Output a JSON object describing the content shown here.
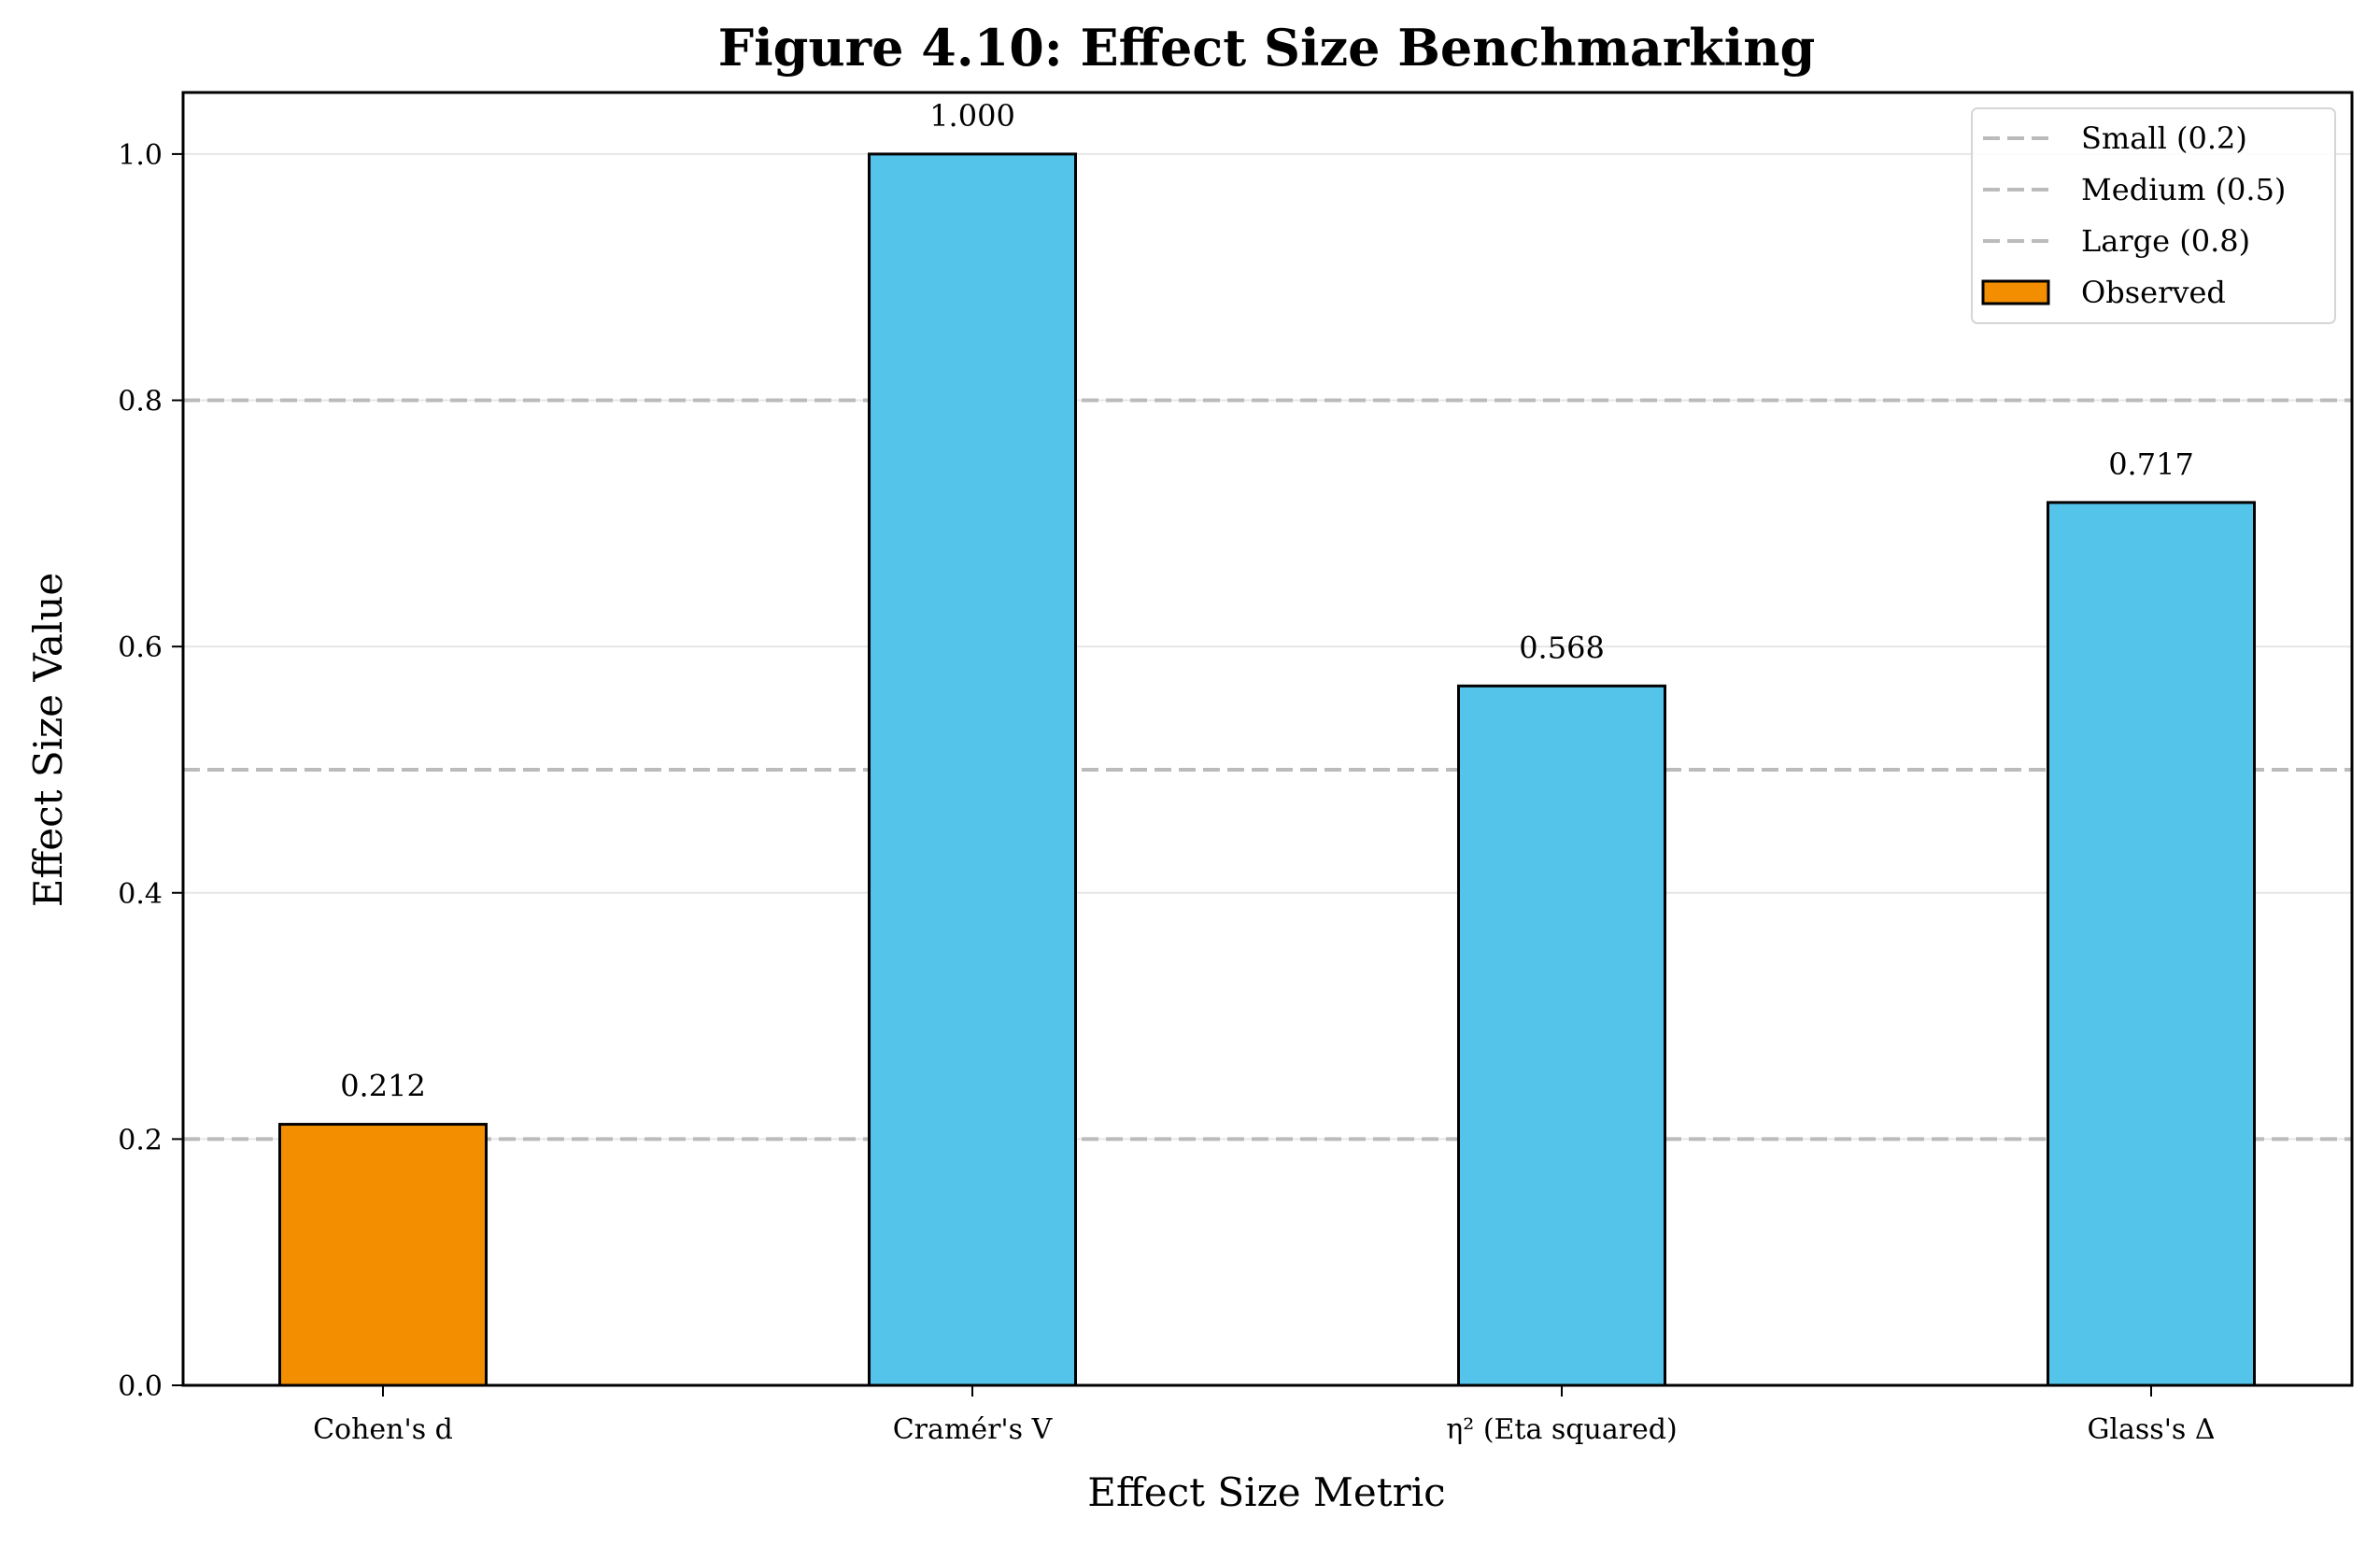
{
  "chart_data": {
    "type": "bar",
    "title": "Figure 4.10: Effect Size Benchmarking",
    "xlabel": "Effect Size Metric",
    "ylabel": "Effect Size Value",
    "categories": [
      "Cohen's d",
      "Cramér's V",
      "η² (Eta squared)",
      "Glass's Δ"
    ],
    "values": [
      0.212,
      1.0,
      0.568,
      0.717
    ],
    "value_labels": [
      "0.212",
      "1.000",
      "0.568",
      "0.717"
    ],
    "bar_colors": [
      "#F28E00",
      "#55C4EA",
      "#55C4EA",
      "#55C4EA"
    ],
    "ylim": [
      0,
      1.05
    ],
    "yticks": [
      0.0,
      0.2,
      0.4,
      0.6,
      0.8,
      1.0
    ],
    "ytick_labels": [
      "0.0",
      "0.2",
      "0.4",
      "0.6",
      "0.8",
      "1.0"
    ],
    "grid": "y",
    "reference_lines": [
      {
        "name": "Small (0.2)",
        "value": 0.2
      },
      {
        "name": "Medium (0.5)",
        "value": 0.5
      },
      {
        "name": "Large (0.8)",
        "value": 0.8
      }
    ],
    "legend": {
      "placement": "top-right",
      "entries": [
        "Small (0.2)",
        "Medium (0.5)",
        "Large (0.8)",
        "Observed"
      ]
    },
    "colors": {
      "observed": "#F28E00",
      "other": "#55C4EA",
      "reference_line": "#BBBBBB",
      "grid": "#E6E6E6"
    }
  }
}
